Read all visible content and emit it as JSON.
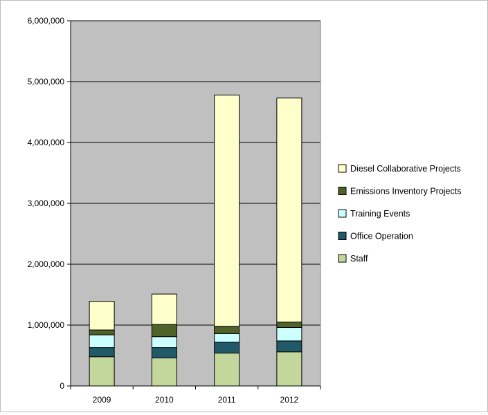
{
  "chart_data": {
    "type": "bar",
    "stacked": true,
    "categories": [
      "2009",
      "2010",
      "2011",
      "2012"
    ],
    "series": [
      {
        "name": "Staff",
        "color": "#c3d69b",
        "values": [
          480000,
          460000,
          540000,
          560000
        ]
      },
      {
        "name": "Office Operation",
        "color": "#215968",
        "values": [
          150000,
          170000,
          180000,
          180000
        ]
      },
      {
        "name": "Training Events",
        "color": "#ccffff",
        "values": [
          210000,
          180000,
          140000,
          220000
        ]
      },
      {
        "name": "Emissions Inventory Projects",
        "color": "#4f6228",
        "values": [
          80000,
          200000,
          120000,
          90000
        ]
      },
      {
        "name": "Diesel Collaborative Projects",
        "color": "#ffffcc",
        "values": [
          470000,
          500000,
          3800000,
          3680000
        ]
      }
    ],
    "ylim": [
      0,
      6000000
    ],
    "yticks": [
      0,
      1000000,
      2000000,
      3000000,
      4000000,
      5000000,
      6000000
    ],
    "ytick_labels": [
      "0",
      "1,000,000",
      "2,000,000",
      "3,000,000",
      "4,000,000",
      "5,000,000",
      "6,000,000"
    ],
    "plot_background": "#c0c0c0",
    "grid": true,
    "legend_position": "right",
    "legend_order": [
      "Diesel Collaborative Projects",
      "Emissions Inventory Projects",
      "Training Events",
      "Office Operation",
      "Staff"
    ],
    "title": "",
    "xlabel": "",
    "ylabel": ""
  }
}
